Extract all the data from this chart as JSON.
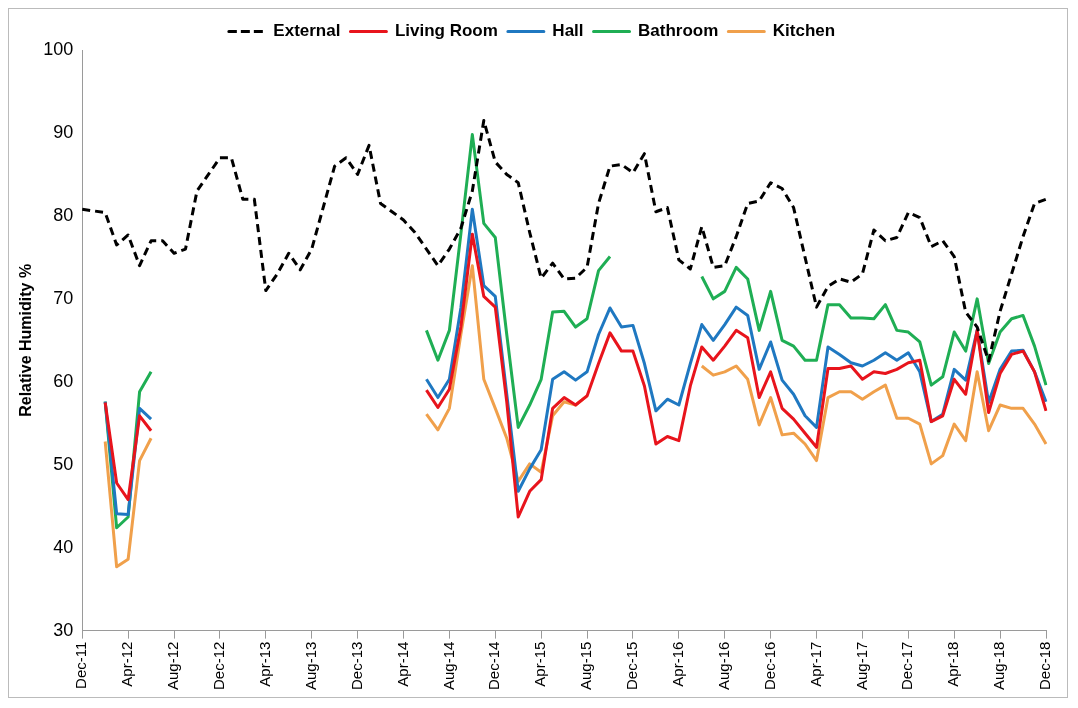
{
  "chart_data": {
    "type": "line",
    "ylabel": "Relative Humidity %",
    "ylim": [
      30,
      100
    ],
    "yticks": [
      30,
      40,
      50,
      60,
      70,
      80,
      90,
      100
    ],
    "legend": "top",
    "categories": [
      "Dec-11",
      null,
      null,
      null,
      "Apr-12",
      null,
      null,
      null,
      "Aug-12",
      null,
      null,
      null,
      "Dec-12",
      null,
      null,
      null,
      "Apr-13",
      null,
      null,
      null,
      "Aug-13",
      null,
      null,
      null,
      "Dec-13",
      null,
      null,
      null,
      "Apr-14",
      null,
      null,
      null,
      "Aug-14",
      null,
      null,
      null,
      "Dec-14",
      null,
      null,
      null,
      "Apr-15",
      null,
      null,
      null,
      "Aug-15",
      null,
      null,
      null,
      "Dec-15",
      null,
      null,
      null,
      "Apr-16",
      null,
      null,
      null,
      "Aug-16",
      null,
      null,
      null,
      "Dec-16",
      null,
      null,
      null,
      "Apr-17",
      null,
      null,
      null,
      "Aug-17",
      null,
      null,
      null,
      "Dec-17",
      null,
      null,
      null,
      "Apr-18",
      null,
      null,
      null,
      "Aug-18",
      null,
      null,
      null,
      "Dec-18"
    ],
    "series": [
      {
        "name": "External",
        "color": "#000000",
        "line_style": "dashed",
        "values": [
          80.8,
          80.6,
          80.4,
          76.5,
          77.7,
          74,
          77,
          77,
          75.5,
          76,
          83,
          85,
          87,
          87,
          82,
          82,
          71,
          73,
          75.5,
          73.5,
          76,
          81,
          86,
          87,
          85,
          88.5,
          81.5,
          80.5,
          79.5,
          78,
          76,
          74,
          76,
          78.5,
          83,
          91.5,
          86.5,
          85,
          84,
          78,
          72.5,
          74.3,
          72.4,
          72.5,
          73.8,
          81.5,
          86,
          86.2,
          85.2,
          87.5,
          80.5,
          81,
          74.7,
          73.6,
          78.7,
          73.8,
          74,
          77.5,
          81.5,
          81.8,
          84,
          83.3,
          81,
          75,
          69,
          71.5,
          72.4,
          72,
          73,
          78.3,
          77,
          77.4,
          80.4,
          79.8,
          76.3,
          77,
          75.1,
          68.4,
          66.6,
          62.5,
          68.5,
          73,
          77.5,
          81.5,
          82
        ]
      },
      {
        "name": "Living Room",
        "color": "#e8141c",
        "line_style": "solid",
        "values": [
          null,
          null,
          57.5,
          47.8,
          45.8,
          55.9,
          54.1,
          null,
          null,
          null,
          null,
          null,
          null,
          null,
          null,
          null,
          null,
          null,
          null,
          null,
          null,
          null,
          null,
          null,
          null,
          null,
          null,
          null,
          null,
          null,
          59,
          56.9,
          59.1,
          66.6,
          77.8,
          70.3,
          69,
          57.6,
          43.7,
          46.8,
          48.2,
          56.8,
          58.1,
          57.2,
          58.3,
          62.2,
          65.9,
          63.7,
          63.7,
          59.5,
          52.5,
          53.4,
          52.9,
          59.5,
          64.2,
          62.6,
          64.3,
          66.2,
          65.3,
          58.1,
          61.2,
          56.8,
          55.5,
          53.8,
          52.1,
          61.6,
          61.6,
          61.9,
          60.3,
          61.2,
          61,
          61.5,
          62.3,
          62.6,
          55.2,
          55.9,
          60.3,
          58.5,
          66.2,
          56.3,
          61,
          63.3,
          63.7,
          61.2,
          56.5
        ]
      },
      {
        "name": "Hall",
        "color": "#1f78c1",
        "line_style": "solid",
        "values": [
          null,
          null,
          57.6,
          44.1,
          44,
          56.8,
          55.5,
          null,
          null,
          null,
          null,
          null,
          null,
          null,
          null,
          null,
          null,
          null,
          null,
          null,
          null,
          null,
          null,
          null,
          null,
          null,
          null,
          null,
          null,
          null,
          60.3,
          58.1,
          60.3,
          68.9,
          80.8,
          71.6,
          70.3,
          58.5,
          46.8,
          49.5,
          51.8,
          60.3,
          61.2,
          60.2,
          61.2,
          65.7,
          68.9,
          66.6,
          66.8,
          62.2,
          56.5,
          57.9,
          57.2,
          62.2,
          66.9,
          65,
          66.9,
          69,
          68,
          61.5,
          64.8,
          60.2,
          58.5,
          55.9,
          54.5,
          64.2,
          63.3,
          62.3,
          61.9,
          62.6,
          63.5,
          62.6,
          63.5,
          61.2,
          55.2,
          56.1,
          61.5,
          60.2,
          66.2,
          57.5,
          61.5,
          63.7,
          63.8,
          61.2,
          57.6
        ]
      },
      {
        "name": "Bathroom",
        "color": "#1fae54",
        "line_style": "solid",
        "values": [
          null,
          null,
          57.6,
          42.4,
          43.7,
          58.8,
          61.2,
          null,
          null,
          null,
          null,
          null,
          null,
          null,
          null,
          null,
          null,
          null,
          null,
          null,
          null,
          null,
          null,
          null,
          null,
          null,
          null,
          null,
          null,
          null,
          66.2,
          62.6,
          66.2,
          77.8,
          89.8,
          79.1,
          77.4,
          65.7,
          54.5,
          57.2,
          60.3,
          68.4,
          68.5,
          66.6,
          67.6,
          73.4,
          75.1,
          null,
          null,
          null,
          null,
          null,
          null,
          null,
          72.7,
          70,
          70.9,
          73.8,
          72.4,
          66.2,
          70.9,
          65,
          64.3,
          62.6,
          62.6,
          69.3,
          69.3,
          67.7,
          67.7,
          67.6,
          69.3,
          66.2,
          66,
          64.8,
          59.6,
          60.6,
          66,
          63.7,
          70,
          62.2,
          66,
          67.6,
          68,
          64.3,
          59.6
        ]
      },
      {
        "name": "Kitchen",
        "color": "#f0a04b",
        "line_style": "solid",
        "values": [
          null,
          null,
          52.8,
          37.7,
          38.6,
          50.5,
          53.2,
          null,
          null,
          null,
          null,
          null,
          null,
          null,
          null,
          null,
          null,
          null,
          null,
          null,
          null,
          null,
          null,
          null,
          null,
          null,
          null,
          null,
          null,
          null,
          56.1,
          54.2,
          56.8,
          65.7,
          74,
          60.3,
          56.8,
          53.2,
          48,
          50.1,
          49.1,
          55.9,
          57.6,
          57.2,
          58.3,
          null,
          null,
          null,
          null,
          null,
          null,
          null,
          null,
          null,
          61.9,
          60.8,
          61.2,
          61.9,
          60.3,
          54.8,
          58.1,
          53.6,
          53.8,
          52.5,
          50.5,
          58.1,
          58.8,
          58.8,
          57.9,
          58.8,
          59.6,
          55.6,
          55.6,
          54.9,
          50.1,
          51.1,
          54.9,
          52.9,
          61.2,
          54.1,
          57.2,
          56.8,
          56.8,
          54.9,
          52.5
        ]
      }
    ]
  }
}
